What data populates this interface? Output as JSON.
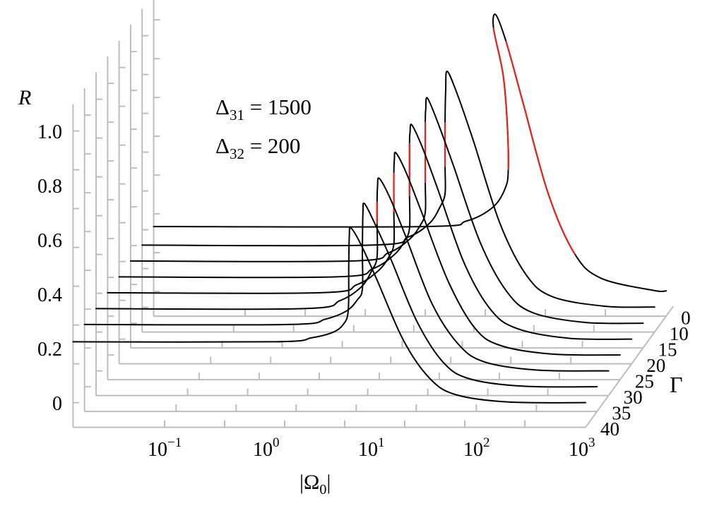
{
  "chart_data": {
    "type": "line",
    "style": "3d-waterfall",
    "x_label": {
      "prefix": "|Ω",
      "sub": "0",
      "suffix": "|"
    },
    "y_label": "R",
    "z_label": "Γ",
    "x_scale": "log",
    "x_range": [
      0.0135,
      1000
    ],
    "y_range": [
      -0.09,
      1.1
    ],
    "x_ticks": [
      {
        "value": 0.1,
        "base": "10",
        "exp": "−1"
      },
      {
        "value": 1,
        "base": "10",
        "exp": "0"
      },
      {
        "value": 10,
        "base": "10",
        "exp": "1"
      },
      {
        "value": 100,
        "base": "10",
        "exp": "2"
      },
      {
        "value": 1000,
        "base": "10",
        "exp": "3"
      }
    ],
    "y_ticks": [
      {
        "value": 1.0,
        "label": "1.0"
      },
      {
        "value": 0.8,
        "label": "0.8"
      },
      {
        "value": 0.6,
        "label": "0.6"
      },
      {
        "value": 0.4,
        "label": "0.4"
      },
      {
        "value": 0.2,
        "label": "0.2"
      },
      {
        "value": 0,
        "label": "0"
      }
    ],
    "z_ticks": [
      "0",
      "10",
      "15",
      "20",
      "25",
      "30",
      "35",
      "40"
    ],
    "annotations": [
      {
        "symbol": "Δ",
        "sub": "31",
        "text": " = 1500"
      },
      {
        "symbol": "Δ",
        "sub": "32",
        "text": " = 200"
      }
    ],
    "colors": {
      "curve": "#000000",
      "highlight": "#e8231f",
      "axes": "#bdbdbd"
    },
    "series": [
      {
        "gamma": 0,
        "highlight_ranges": [
          [
            5,
            8
          ],
          [
            10,
            13
          ]
        ],
        "points": [
          [
            0.0135,
            0.24
          ],
          [
            5.01,
            0.24
          ],
          [
            12.6,
            0.26
          ],
          [
            22.4,
            0.31
          ],
          [
            29.5,
            0.38
          ],
          [
            31.6,
            0.45
          ],
          [
            30.9,
            0.62
          ],
          [
            28.2,
            0.8
          ],
          [
            22.9,
            0.97
          ],
          [
            24.0,
            1.02
          ],
          [
            30.2,
            0.92
          ],
          [
            42.7,
            0.71
          ],
          [
            75.9,
            0.36
          ],
          [
            135,
            0.14
          ],
          [
            240,
            0.05
          ],
          [
            759,
            0.005
          ],
          [
            1000,
            0.003
          ]
        ]
      },
      {
        "gamma": 10,
        "highlight_ranges": [
          [
            6,
            7
          ]
        ],
        "points": [
          [
            0.0135,
            0.23
          ],
          [
            2.04,
            0.23
          ],
          [
            4.57,
            0.26
          ],
          [
            7.24,
            0.31
          ],
          [
            9.12,
            0.37
          ],
          [
            10.2,
            0.42
          ],
          [
            10.2,
            0.52
          ],
          [
            10.2,
            0.68
          ],
          [
            10.35,
            0.8
          ],
          [
            10.7,
            0.87
          ],
          [
            13.5,
            0.78
          ],
          [
            19.1,
            0.61
          ],
          [
            33.9,
            0.31
          ],
          [
            60.3,
            0.12
          ],
          [
            107,
            0.04
          ],
          [
            339,
            0.005
          ],
          [
            1000,
            0.002
          ]
        ]
      },
      {
        "gamma": 15,
        "highlight_ranges": [
          [
            6,
            7
          ]
        ],
        "points": [
          [
            0.0135,
            0.23
          ],
          [
            1.7,
            0.23
          ],
          [
            3.8,
            0.26
          ],
          [
            6.03,
            0.31
          ],
          [
            7.59,
            0.36
          ],
          [
            8.51,
            0.41
          ],
          [
            8.51,
            0.52
          ],
          [
            8.51,
            0.74
          ],
          [
            8.61,
            0.79
          ],
          [
            8.91,
            0.83
          ],
          [
            11.2,
            0.74
          ],
          [
            15.8,
            0.58
          ],
          [
            28.2,
            0.3
          ],
          [
            50.1,
            0.12
          ],
          [
            89.1,
            0.04
          ],
          [
            282,
            0.004
          ],
          [
            1000,
            0.001
          ]
        ]
      },
      {
        "gamma": 20,
        "highlight_ranges": [
          [
            6,
            7
          ]
        ],
        "points": [
          [
            0.0135,
            0.23
          ],
          [
            1.55,
            0.23
          ],
          [
            3.47,
            0.26
          ],
          [
            5.5,
            0.31
          ],
          [
            6.92,
            0.36
          ],
          [
            7.76,
            0.41
          ],
          [
            7.76,
            0.53
          ],
          [
            7.76,
            0.72
          ],
          [
            7.85,
            0.76
          ],
          [
            8.13,
            0.79
          ],
          [
            10.2,
            0.71
          ],
          [
            14.5,
            0.55
          ],
          [
            25.7,
            0.28
          ],
          [
            45.7,
            0.11
          ],
          [
            81.3,
            0.04
          ],
          [
            257,
            0.004
          ],
          [
            1000,
            0.001
          ]
        ]
      },
      {
        "gamma": 25,
        "highlight_ranges": [
          [
            6,
            7
          ]
        ],
        "points": [
          [
            0.0135,
            0.23
          ],
          [
            1.41,
            0.23
          ],
          [
            3.16,
            0.26
          ],
          [
            5.01,
            0.31
          ],
          [
            6.31,
            0.36
          ],
          [
            7.08,
            0.41
          ],
          [
            7.08,
            0.53
          ],
          [
            7.08,
            0.67
          ],
          [
            7.16,
            0.72
          ],
          [
            7.41,
            0.745
          ],
          [
            9.33,
            0.67
          ],
          [
            13.2,
            0.52
          ],
          [
            23.4,
            0.27
          ],
          [
            41.7,
            0.1
          ],
          [
            74.1,
            0.035
          ],
          [
            234,
            0.004
          ],
          [
            1000,
            0.001
          ]
        ]
      },
      {
        "gamma": 30,
        "highlight_ranges": [
          [
            6,
            7
          ]
        ],
        "points": [
          [
            0.0135,
            0.23
          ],
          [
            1.26,
            0.23
          ],
          [
            2.82,
            0.26
          ],
          [
            4.47,
            0.31
          ],
          [
            5.62,
            0.37
          ],
          [
            6.31,
            0.42
          ],
          [
            6.31,
            0.545
          ],
          [
            6.31,
            0.62
          ],
          [
            6.38,
            0.68
          ],
          [
            6.61,
            0.71
          ],
          [
            8.32,
            0.64
          ],
          [
            11.7,
            0.5
          ],
          [
            20.9,
            0.25
          ],
          [
            37.2,
            0.1
          ],
          [
            66.1,
            0.034
          ],
          [
            209,
            0.004
          ],
          [
            1000,
            0.001
          ]
        ]
      },
      {
        "gamma": 35,
        "highlight_ranges": [],
        "points": [
          [
            0.0135,
            0.23
          ],
          [
            1.17,
            0.23
          ],
          [
            2.63,
            0.25
          ],
          [
            4.17,
            0.28
          ],
          [
            5.25,
            0.32
          ],
          [
            5.89,
            0.36
          ],
          [
            5.89,
            0.5
          ],
          [
            5.96,
            0.64
          ],
          [
            6.17,
            0.675
          ],
          [
            7.76,
            0.6
          ],
          [
            11.0,
            0.47
          ],
          [
            19.5,
            0.24
          ],
          [
            34.7,
            0.09
          ],
          [
            61.7,
            0.03
          ],
          [
            195,
            0.003
          ],
          [
            1000,
            0.001
          ]
        ]
      },
      {
        "gamma": 40,
        "highlight_ranges": [],
        "points": [
          [
            0.0135,
            0.225
          ],
          [
            1.12,
            0.225
          ],
          [
            2.51,
            0.24
          ],
          [
            3.98,
            0.26
          ],
          [
            5.01,
            0.29
          ],
          [
            5.56,
            0.34
          ],
          [
            5.62,
            0.5
          ],
          [
            5.69,
            0.61
          ],
          [
            5.89,
            0.644
          ],
          [
            7.41,
            0.58
          ],
          [
            10.5,
            0.45
          ],
          [
            18.6,
            0.23
          ],
          [
            33.1,
            0.09
          ],
          [
            58.9,
            0.03
          ],
          [
            186,
            0.003
          ],
          [
            1000,
            0.001
          ]
        ]
      }
    ]
  }
}
